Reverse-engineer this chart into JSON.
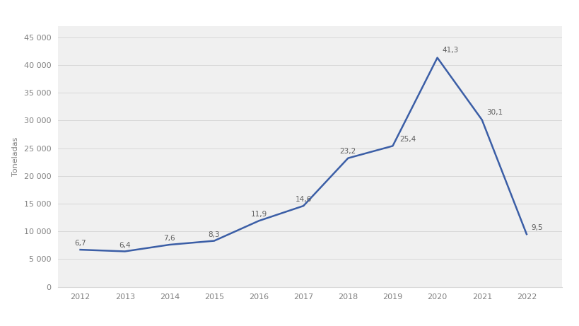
{
  "years": [
    2012,
    2013,
    2014,
    2015,
    2016,
    2017,
    2018,
    2019,
    2020,
    2021,
    2022
  ],
  "values": [
    6700,
    6400,
    7600,
    8300,
    11900,
    14600,
    23200,
    25400,
    41300,
    30100,
    9500
  ],
  "labels": [
    "6,7",
    "6,4",
    "7,6",
    "8,3",
    "11,9",
    "14,6",
    "23,2",
    "25,4",
    "41,3",
    "30,1",
    "9,5"
  ],
  "line_color": "#3B5EA6",
  "fig_background": "#ffffff",
  "plot_background": "#f0f0f0",
  "grid_color": "#d8d8d8",
  "ylabel": "Toneladas",
  "yticks": [
    0,
    5000,
    10000,
    15000,
    20000,
    25000,
    30000,
    35000,
    40000,
    45000
  ],
  "ytick_labels": [
    "0",
    "5 000",
    "10 000",
    "15 000",
    "20 000",
    "25 000",
    "30 000",
    "35 000",
    "40 000",
    "45 000"
  ],
  "ylim": [
    0,
    47000
  ],
  "xlim": [
    2011.5,
    2022.8
  ],
  "tick_color": "#808080",
  "label_color": "#606060",
  "linewidth": 1.8,
  "annotation_fontsize": 7.5,
  "tick_fontsize": 8,
  "ylabel_fontsize": 8
}
